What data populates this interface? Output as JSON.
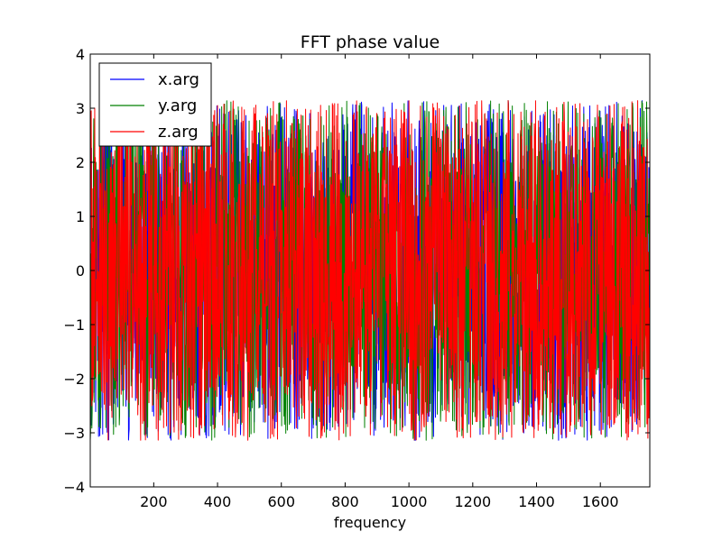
{
  "chart_data": {
    "type": "line",
    "title": "FFT phase value",
    "xlabel": "frequency",
    "ylabel": "",
    "xlim": [
      1,
      1755
    ],
    "ylim": [
      -4,
      4
    ],
    "xticks": [
      200,
      400,
      600,
      800,
      1000,
      1200,
      1400,
      1600
    ],
    "yticks": [
      -4,
      -3,
      -2,
      -1,
      0,
      1,
      2,
      3,
      4
    ],
    "xtick_labels": [
      "200",
      "400",
      "600",
      "800",
      "1000",
      "1200",
      "1400",
      "1600"
    ],
    "ytick_labels": [
      "−4",
      "−3",
      "−2",
      "−1",
      "0",
      "1",
      "2",
      "3",
      "4"
    ],
    "grid": false,
    "legend": "top-left",
    "series": [
      {
        "name": "x.arg",
        "color": "#0000ff",
        "seed": 11
      },
      {
        "name": "y.arg",
        "color": "#008000",
        "seed": 23
      },
      {
        "name": "z.arg",
        "color": "#ff0000",
        "seed": 37
      }
    ],
    "x_start": 1,
    "x_end": 1755,
    "value_range": [
      -3.14,
      3.14
    ]
  }
}
